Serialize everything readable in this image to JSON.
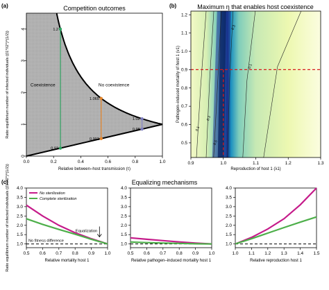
{
  "panels": [
    {
      "letter": "(a)",
      "title": "Competition outcomes"
    },
    {
      "letter": "(b)",
      "title": "Maximum η that enables host coexistence"
    },
    {
      "letter": "(c)",
      "title": "Equalizing mechanisms"
    }
  ],
  "chart_data": [
    {
      "type": "area",
      "panel": "a",
      "title": "Competition outcomes",
      "xlabel": "Relative between–host transmission (τ)",
      "ylabel": "Ratio equilibrium number of infected individuals ((I1*/I2*)^(1/2))",
      "xlim": [
        0,
        1
      ],
      "ylim": [
        0,
        4.5
      ],
      "x_ticks": [
        "0.0",
        "0.2",
        "0.4",
        "0.6",
        "0.8",
        "1.0"
      ],
      "y_ticks": [
        "0",
        "1",
        "2",
        "3",
        "4"
      ],
      "regions": [
        {
          "label": "Coexistence",
          "fill": "#bdbdbd"
        },
        {
          "label": "No coexistence",
          "fill": "#ffffff"
        }
      ],
      "boundary_curves": [
        {
          "name": "upper",
          "formula": "1/τ",
          "x": [
            0.222,
            0.25,
            0.3,
            0.4,
            0.5,
            0.6,
            0.7,
            0.8,
            0.9,
            1.0
          ],
          "y": [
            4.5,
            4.0,
            3.333,
            2.5,
            2.0,
            1.667,
            1.429,
            1.25,
            1.111,
            1.0
          ]
        },
        {
          "name": "lower",
          "formula": "τ",
          "x": [
            0,
            1
          ],
          "y": [
            0,
            1
          ]
        }
      ],
      "vertical_segments": [
        {
          "x": 0.25,
          "y_low": 0.25,
          "y_high": 4.0,
          "color": "#2ca25f",
          "labels": [
            "1.2",
            "0.93"
          ]
        },
        {
          "x": 0.55,
          "y_low": 0.55,
          "y_high": 1.818,
          "color": "#e6862b",
          "labels": [
            "1.065",
            "0.902"
          ]
        },
        {
          "x": 0.85,
          "y_low": 0.85,
          "y_high": 1.176,
          "color": "#7b7bbd",
          "labels": [
            "1.02",
            "0.98"
          ]
        }
      ]
    },
    {
      "type": "heatmap",
      "panel": "b",
      "title": "Maximum η that enables host coexistence",
      "xlabel": "Reproduction of host 1 (λ1)",
      "ylabel": "Pathogen–induced mortality of host 1 (ν1)",
      "xlim": [
        0.9,
        1.3
      ],
      "ylim": [
        0.42,
        1.22
      ],
      "x_ticks": [
        "0.9",
        "1.0",
        "1.1",
        "1.2",
        "1.3"
      ],
      "y_ticks": [
        "0.5",
        "0.6",
        "0.7",
        "0.8",
        "0.9",
        "1.0",
        "1.1",
        "1.2"
      ],
      "peak_x": 1.0,
      "reference_lines": [
        {
          "orientation": "horizontal",
          "value": 0.9,
          "color": "#d7191c",
          "style": "dashed"
        },
        {
          "orientation": "vertical",
          "value": 1.0,
          "color": "#d7191c",
          "style": "dashed"
        }
      ],
      "contour_labels": [
        "0.1",
        "0.1",
        "0.3",
        "0.3",
        "0.5"
      ]
    },
    {
      "type": "line",
      "panel": "c1",
      "title": "Equalizing mechanisms",
      "xlabel": "Relative mortality host 1",
      "ylabel": "Ratio equilibrium number of infected individuals ((I1*/I2*)^(1/2))",
      "xlim": [
        0.5,
        1.0
      ],
      "ylim": [
        0.8,
        4.0
      ],
      "x_ticks": [
        "0.5",
        "0.6",
        "0.7",
        "0.8",
        "0.9",
        "1.0"
      ],
      "y_ticks": [
        "1.0",
        "1.5",
        "2.0",
        "2.5",
        "3.0",
        "3.5",
        "4.0"
      ],
      "x": [
        0.5,
        0.6,
        0.7,
        0.8,
        0.9,
        1.0
      ],
      "series": [
        {
          "name": "No sterilization",
          "color": "#c51b8a",
          "values": [
            3.08,
            2.5,
            2.0,
            1.6,
            1.28,
            1.0
          ]
        },
        {
          "name": "Complete sterilization",
          "color": "#4daf4a",
          "values": [
            2.35,
            2.05,
            1.78,
            1.52,
            1.25,
            1.0
          ]
        }
      ],
      "reference_line": {
        "value": 1.0,
        "label": "No fitness difference"
      },
      "annotation": {
        "label": "Equalization",
        "arrow": "down",
        "x": 0.95,
        "y_from": 1.75,
        "y_to": 1.38
      }
    },
    {
      "type": "line",
      "panel": "c2",
      "title": "",
      "xlabel": "Relative pathogen–induced mortality host 1",
      "ylabel": "",
      "xlim": [
        0.5,
        1.0
      ],
      "ylim": [
        0.8,
        4.0
      ],
      "x_ticks": [
        "0.5",
        "0.6",
        "0.7",
        "0.8",
        "0.9",
        "1.0"
      ],
      "y_ticks": [
        "1.0",
        "1.5",
        "2.0",
        "2.5",
        "3.0",
        "3.5",
        "4.0"
      ],
      "x": [
        0.5,
        0.6,
        0.7,
        0.8,
        0.9,
        1.0
      ],
      "series": [
        {
          "name": "No sterilization",
          "color": "#c51b8a",
          "values": [
            1.33,
            1.25,
            1.18,
            1.11,
            1.05,
            1.0
          ]
        },
        {
          "name": "Complete sterilization",
          "color": "#4daf4a",
          "values": [
            1.1,
            1.07,
            1.05,
            1.03,
            1.01,
            1.0
          ]
        }
      ],
      "reference_line": {
        "value": 1.0
      }
    },
    {
      "type": "line",
      "panel": "c3",
      "title": "",
      "xlabel": "Relative reproduction host 1",
      "ylabel": "",
      "xlim": [
        1.0,
        1.5
      ],
      "ylim": [
        0.8,
        4.0
      ],
      "x_ticks": [
        "1.0",
        "1.1",
        "1.2",
        "1.3",
        "1.4",
        "1.5"
      ],
      "y_ticks": [
        "1.0",
        "1.5",
        "2.0",
        "2.5",
        "3.0",
        "3.5",
        "4.0"
      ],
      "x": [
        1.0,
        1.1,
        1.2,
        1.3,
        1.4,
        1.5
      ],
      "series": [
        {
          "name": "No sterilization",
          "color": "#c51b8a",
          "values": [
            1.0,
            1.35,
            1.8,
            2.35,
            3.1,
            4.0
          ]
        },
        {
          "name": "Complete sterilization",
          "color": "#4daf4a",
          "values": [
            1.0,
            1.28,
            1.58,
            1.88,
            2.17,
            2.45
          ]
        }
      ],
      "reference_line": {
        "value": 1.0
      }
    }
  ]
}
